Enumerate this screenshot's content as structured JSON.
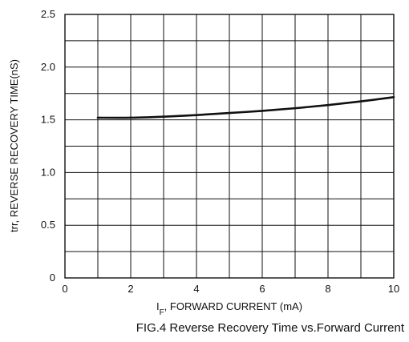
{
  "chart_data": {
    "type": "line",
    "title": "",
    "caption": "FIG.4 Reverse Recovery Time vs.Forward Current",
    "xlabel_main": "I",
    "xlabel_sub": "F",
    "xlabel_rest": ", FORWARD CURRENT (mA)",
    "ylabel": "trr, REVERSE RECOVERY TIME(nS)",
    "xlim": [
      0,
      10
    ],
    "ylim": [
      0,
      2.5
    ],
    "x_ticks": [
      "0",
      "2",
      "4",
      "6",
      "8",
      "10"
    ],
    "y_ticks": [
      "0",
      "0.5",
      "1.0",
      "1.5",
      "2.0",
      "2.5"
    ],
    "x_grid_step": 1,
    "y_grid_step": 0.25,
    "grid": true,
    "series": [
      {
        "x": [
          1,
          2,
          3,
          4,
          5,
          6,
          7,
          8,
          9,
          10
        ],
        "y": [
          1.52,
          1.52,
          1.53,
          1.545,
          1.565,
          1.585,
          1.61,
          1.64,
          1.675,
          1.715
        ]
      }
    ],
    "line_color": "#111111"
  }
}
